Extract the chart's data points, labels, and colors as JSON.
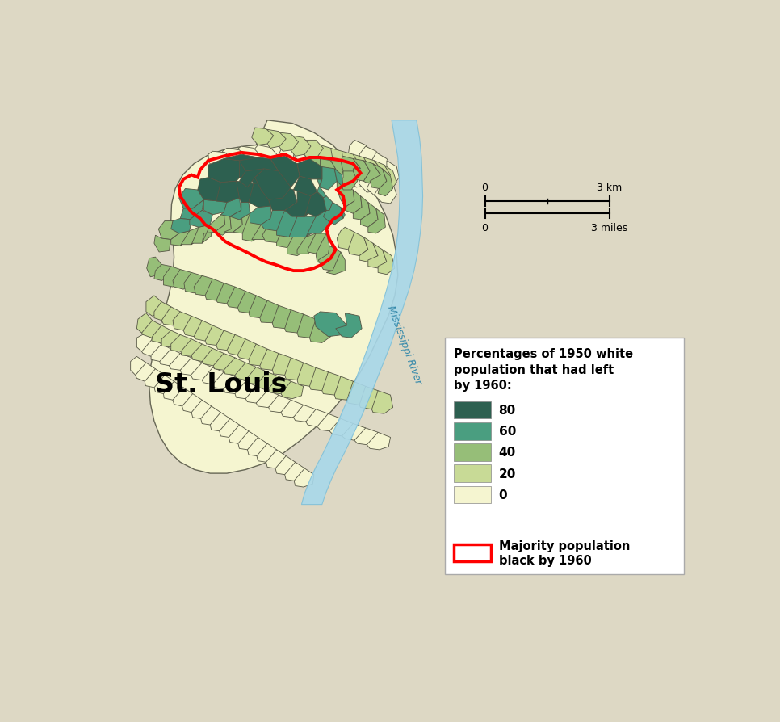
{
  "background_color": "#ddd8c4",
  "river_color": "#a8d8ea",
  "river_edge_color": "#80c0d8",
  "river_label": "Mississippi River",
  "city_label": "St. Louis",
  "legend_title": "Percentages of 1950 white\npopulation that had left\nby 1960:",
  "legend_values": [
    "80",
    "60",
    "40",
    "20",
    "0"
  ],
  "color_0": "#f5f5d0",
  "color_20": "#c8da96",
  "color_40": "#96be78",
  "color_60": "#4a9e80",
  "color_80": "#2d6050",
  "edge_color": "#555544",
  "scalebar_km": "3 km",
  "scalebar_miles": "3 miles"
}
